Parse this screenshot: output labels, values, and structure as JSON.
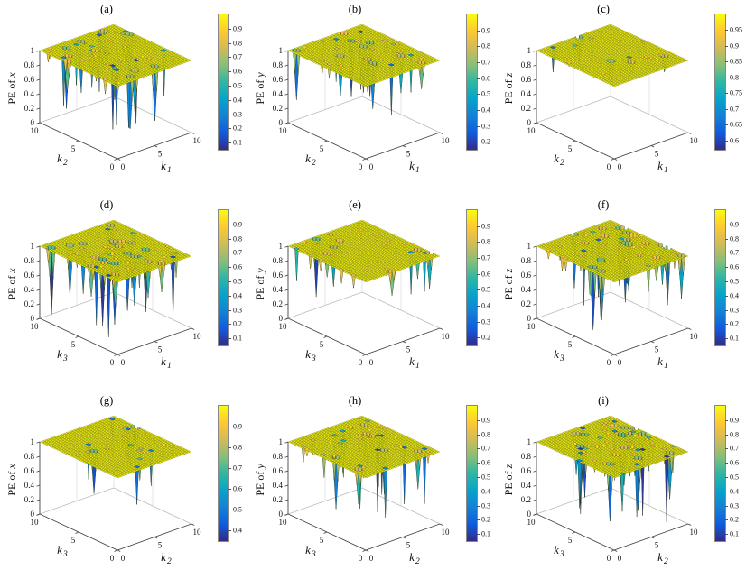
{
  "colormap": {
    "name": "parula",
    "stops": [
      "#352a87",
      "#0f5cdd",
      "#1481d6",
      "#06a4ca",
      "#2eb7a4",
      "#87bf77",
      "#d1bb59",
      "#fec832",
      "#f9fb0e"
    ]
  },
  "axes": {
    "x_ticks": [
      0,
      5,
      10
    ],
    "z_ticks": [
      0,
      0.2,
      0.4,
      0.6,
      0.8,
      1
    ],
    "z_tick_labels": [
      "0",
      "0.2",
      "0.4",
      "0.6",
      "0.8",
      "1"
    ]
  },
  "chart_data": [
    {
      "label": "(a)",
      "type": "surface",
      "zlabel": "PE of x",
      "xlabel": "k1",
      "ylabel": "k2",
      "x_range": [
        0,
        10
      ],
      "y_range": [
        0,
        10
      ],
      "z_range": [
        0,
        1
      ],
      "baseline": 1,
      "summary": "Permutation entropy of x over (k1,k2): flat near 1 with deep downward spikes concentrated at small k1",
      "colorbar": {
        "min": 0.05,
        "max": 1.0,
        "ticks": [
          0.1,
          0.2,
          0.3,
          0.4,
          0.5,
          0.6,
          0.7,
          0.8,
          0.9
        ]
      },
      "spikes": {
        "count": 24,
        "bias": "low",
        "min": 0.07,
        "max": 0.7,
        "shallow_count": 22,
        "shallow_min": 0.78,
        "shallow_max": 0.96
      }
    },
    {
      "label": "(b)",
      "type": "surface",
      "zlabel": "PE of y",
      "xlabel": "k1",
      "ylabel": "k2",
      "x_range": [
        0,
        10
      ],
      "y_range": [
        0,
        10
      ],
      "z_range": [
        0,
        1
      ],
      "baseline": 1,
      "summary": "Permutation entropy of y over (k1,k2): flat near 1 with scattered moderate spikes",
      "colorbar": {
        "min": 0.15,
        "max": 1.0,
        "ticks": [
          0.2,
          0.3,
          0.4,
          0.5,
          0.6,
          0.7,
          0.8,
          0.9
        ]
      },
      "spikes": {
        "count": 15,
        "bias": "none",
        "min": 0.18,
        "max": 0.7,
        "shallow_count": 16,
        "shallow_min": 0.78,
        "shallow_max": 0.96
      }
    },
    {
      "label": "(c)",
      "type": "surface",
      "zlabel": "PE of z",
      "xlabel": "k1",
      "ylabel": "k2",
      "x_range": [
        0,
        10
      ],
      "y_range": [
        0,
        10
      ],
      "z_range": [
        0,
        1
      ],
      "baseline": 1,
      "summary": "Permutation entropy of z over (k1,k2): nearly flat at 1 with few shallow dips (min about 0.6)",
      "colorbar": {
        "min": 0.57,
        "max": 1.0,
        "ticks": [
          0.6,
          0.65,
          0.7,
          0.75,
          0.8,
          0.85,
          0.9,
          0.95
        ]
      },
      "spikes": {
        "count": 7,
        "bias": "none",
        "min": 0.6,
        "max": 0.85,
        "shallow_count": 8,
        "shallow_min": 0.88,
        "shallow_max": 0.97
      }
    },
    {
      "label": "(d)",
      "type": "surface",
      "zlabel": "PE of x",
      "xlabel": "k1",
      "ylabel": "k3",
      "x_range": [
        0,
        10
      ],
      "y_range": [
        0,
        10
      ],
      "z_range": [
        0,
        1
      ],
      "baseline": 1,
      "summary": "Permutation entropy of x over (k1,k3): flat near 1 with many deep spikes spread across the plane",
      "colorbar": {
        "min": 0.05,
        "max": 1.0,
        "ticks": [
          0.1,
          0.2,
          0.3,
          0.4,
          0.5,
          0.6,
          0.7,
          0.8,
          0.9
        ]
      },
      "spikes": {
        "count": 30,
        "bias": "none",
        "min": 0.07,
        "max": 0.7,
        "shallow_count": 26,
        "shallow_min": 0.78,
        "shallow_max": 0.96
      }
    },
    {
      "label": "(e)",
      "type": "surface",
      "zlabel": "PE of y",
      "xlabel": "k1",
      "ylabel": "k3",
      "x_range": [
        0,
        10
      ],
      "y_range": [
        0,
        10
      ],
      "z_range": [
        0,
        1
      ],
      "baseline": 1,
      "summary": "Permutation entropy of y over (k1,k3): mostly flat with a few deep spikes at small k1",
      "colorbar": {
        "min": 0.15,
        "max": 1.0,
        "ticks": [
          0.2,
          0.3,
          0.4,
          0.5,
          0.6,
          0.7,
          0.8,
          0.9
        ]
      },
      "spikes": {
        "count": 10,
        "bias": "low",
        "min": 0.18,
        "max": 0.7,
        "shallow_count": 14,
        "shallow_min": 0.78,
        "shallow_max": 0.96
      }
    },
    {
      "label": "(f)",
      "type": "surface",
      "zlabel": "PE of z",
      "xlabel": "k1",
      "ylabel": "k3",
      "x_range": [
        0,
        10
      ],
      "y_range": [
        0,
        10
      ],
      "z_range": [
        0,
        1
      ],
      "baseline": 1,
      "summary": "Permutation entropy of z over (k1,k3): flat near 1 with dense deep spikes at large k1",
      "colorbar": {
        "min": 0.05,
        "max": 1.0,
        "ticks": [
          0.1,
          0.2,
          0.3,
          0.4,
          0.5,
          0.6,
          0.7,
          0.8,
          0.9
        ]
      },
      "spikes": {
        "count": 28,
        "bias": "high",
        "min": 0.07,
        "max": 0.7,
        "shallow_count": 24,
        "shallow_min": 0.78,
        "shallow_max": 0.96
      }
    },
    {
      "label": "(g)",
      "type": "surface",
      "zlabel": "PE of x",
      "xlabel": "k2",
      "ylabel": "k3",
      "x_range": [
        0,
        10
      ],
      "y_range": [
        0,
        10
      ],
      "z_range": [
        0,
        1
      ],
      "baseline": 1,
      "summary": "Permutation entropy of x over (k2,k3): nearly flat with few moderate spikes at large k2",
      "colorbar": {
        "min": 0.35,
        "max": 1.0,
        "ticks": [
          0.4,
          0.5,
          0.6,
          0.7,
          0.8,
          0.9
        ]
      },
      "spikes": {
        "count": 9,
        "bias": "high",
        "min": 0.38,
        "max": 0.72,
        "shallow_count": 10,
        "shallow_min": 0.8,
        "shallow_max": 0.96
      }
    },
    {
      "label": "(h)",
      "type": "surface",
      "zlabel": "PE of y",
      "xlabel": "k2",
      "ylabel": "k3",
      "x_range": [
        0,
        10
      ],
      "y_range": [
        0,
        10
      ],
      "z_range": [
        0,
        1
      ],
      "baseline": 1,
      "summary": "Permutation entropy of y over (k2,k3): flat near 1 with scattered deep spikes",
      "colorbar": {
        "min": 0.05,
        "max": 1.0,
        "ticks": [
          0.1,
          0.2,
          0.3,
          0.4,
          0.5,
          0.6,
          0.7,
          0.8,
          0.9
        ]
      },
      "spikes": {
        "count": 20,
        "bias": "none",
        "min": 0.07,
        "max": 0.7,
        "shallow_count": 20,
        "shallow_min": 0.78,
        "shallow_max": 0.96
      }
    },
    {
      "label": "(i)",
      "type": "surface",
      "zlabel": "PE of z",
      "xlabel": "k2",
      "ylabel": "k3",
      "x_range": [
        0,
        10
      ],
      "y_range": [
        0,
        10
      ],
      "z_range": [
        0,
        1
      ],
      "baseline": 1,
      "summary": "Permutation entropy of z over (k2,k3): flat near 1 with dense deep spikes at large k2",
      "colorbar": {
        "min": 0.05,
        "max": 1.0,
        "ticks": [
          0.1,
          0.2,
          0.3,
          0.4,
          0.5,
          0.6,
          0.7,
          0.8,
          0.9
        ]
      },
      "spikes": {
        "count": 34,
        "bias": "high",
        "min": 0.07,
        "max": 0.7,
        "shallow_count": 28,
        "shallow_min": 0.78,
        "shallow_max": 0.96
      }
    }
  ]
}
